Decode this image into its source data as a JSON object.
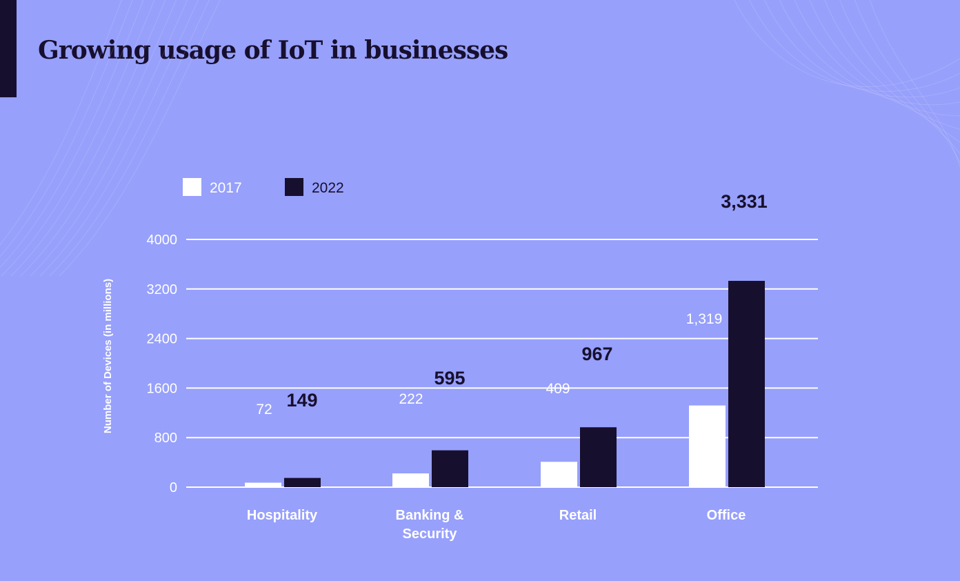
{
  "chart_data": {
    "type": "bar",
    "title": "Growing usage of IoT in businesses",
    "ylabel": "Number of Devices (in millions)",
    "xlabel": "",
    "ylim": [
      0,
      4000
    ],
    "yticks": [
      "0",
      "800",
      "1600",
      "2400",
      "3200",
      "4000"
    ],
    "grid": true,
    "legend_position": "top-left",
    "categories": [
      "Hospitality",
      "Banking & Security",
      "Retail",
      "Office"
    ],
    "category_lines": [
      [
        "Hospitality"
      ],
      [
        "Banking &",
        "Security"
      ],
      [
        "Retail"
      ],
      [
        "Office"
      ]
    ],
    "series": [
      {
        "name": "2017",
        "color": "#ffffff",
        "values": [
          72,
          222,
          409,
          1319
        ],
        "labels": [
          "72",
          "222",
          "409",
          "1,319"
        ]
      },
      {
        "name": "2022",
        "color": "#170f2e",
        "values": [
          149,
          595,
          967,
          3331
        ],
        "labels": [
          "149",
          "595",
          "967",
          "3,331"
        ]
      }
    ]
  },
  "colors": {
    "background": "#97a0fb",
    "accent": "#170f2e",
    "grid": "#ffffff"
  }
}
